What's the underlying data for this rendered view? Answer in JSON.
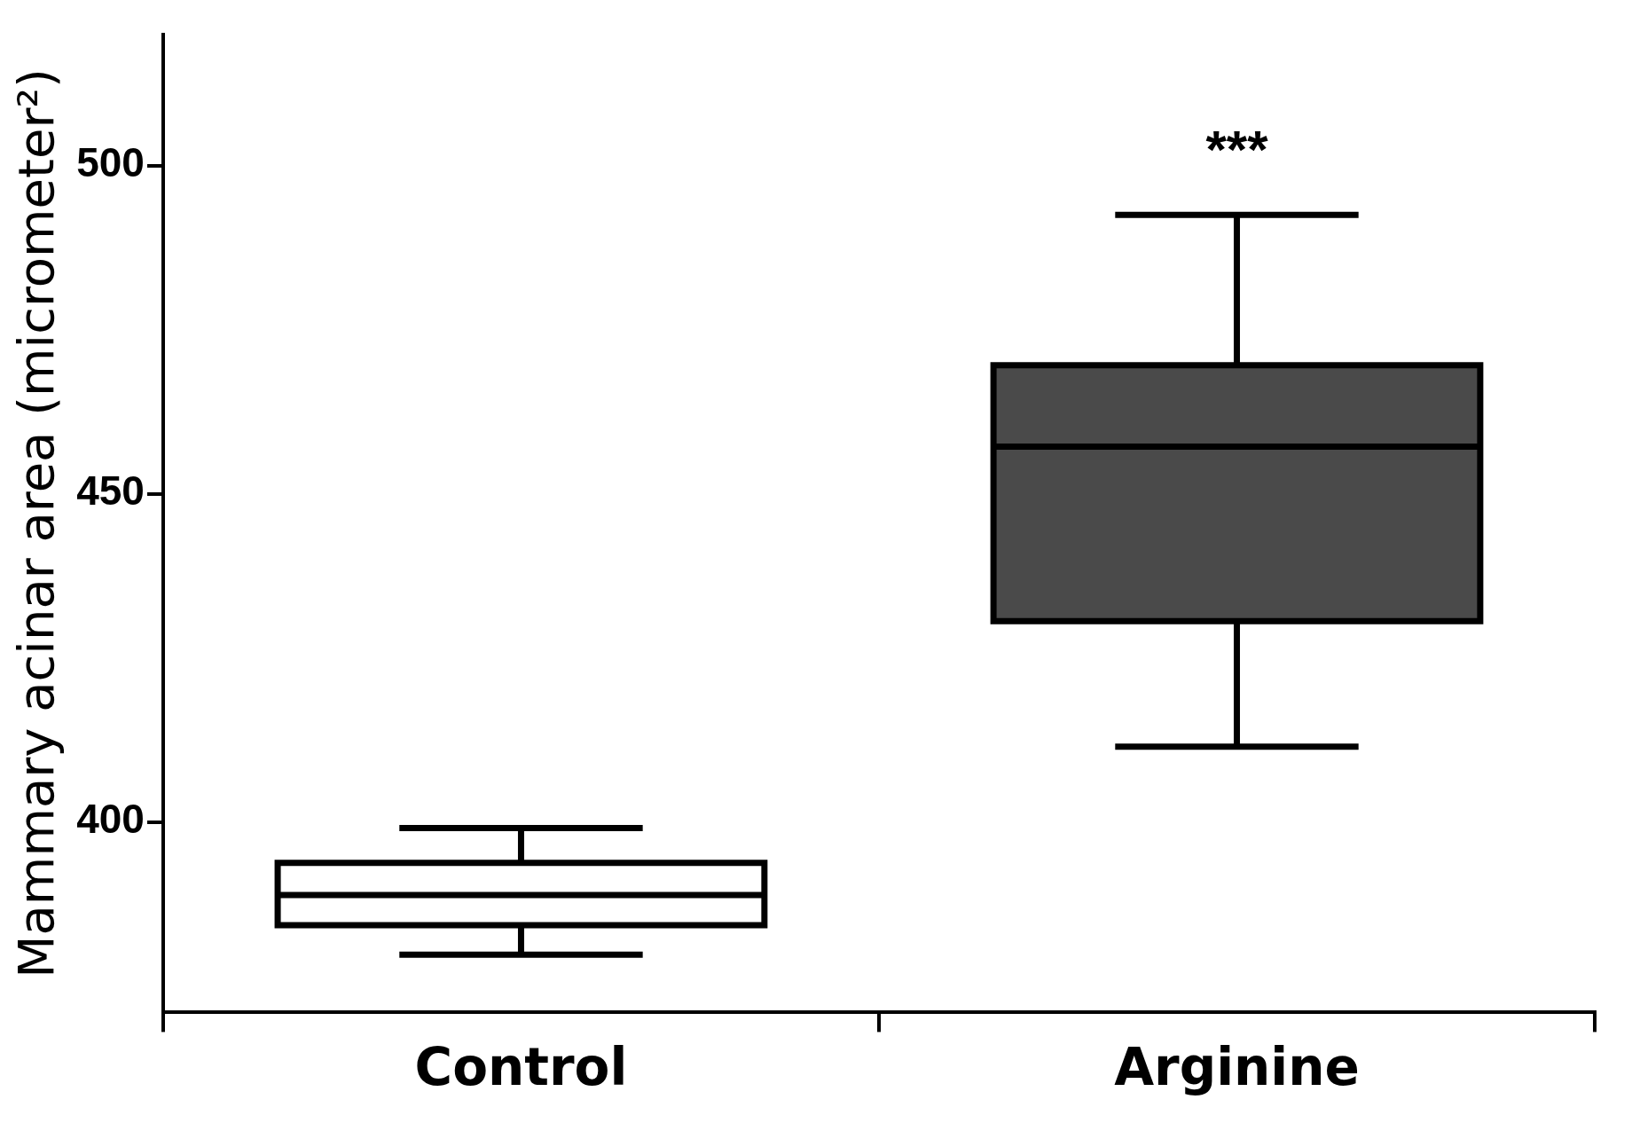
{
  "chart_data": {
    "type": "box",
    "ylabel": "Mammary acinar area (micrometer²)",
    "categories": [
      "Control",
      "Arginine"
    ],
    "boxes": [
      {
        "low": 379.8,
        "q1": 384.3,
        "median": 388.9,
        "q3": 393.8,
        "high": 399.1
      },
      {
        "low": 411.5,
        "q1": 430.6,
        "median": 457.2,
        "q3": 469.6,
        "high": 492.5
      }
    ],
    "colors": [
      "#ffffff",
      "#4a4a4a"
    ],
    "ylim": [
      371,
      520
    ],
    "yticks": [
      400,
      450,
      500
    ],
    "grid": false,
    "legend": false,
    "annotations": [
      "***"
    ]
  }
}
